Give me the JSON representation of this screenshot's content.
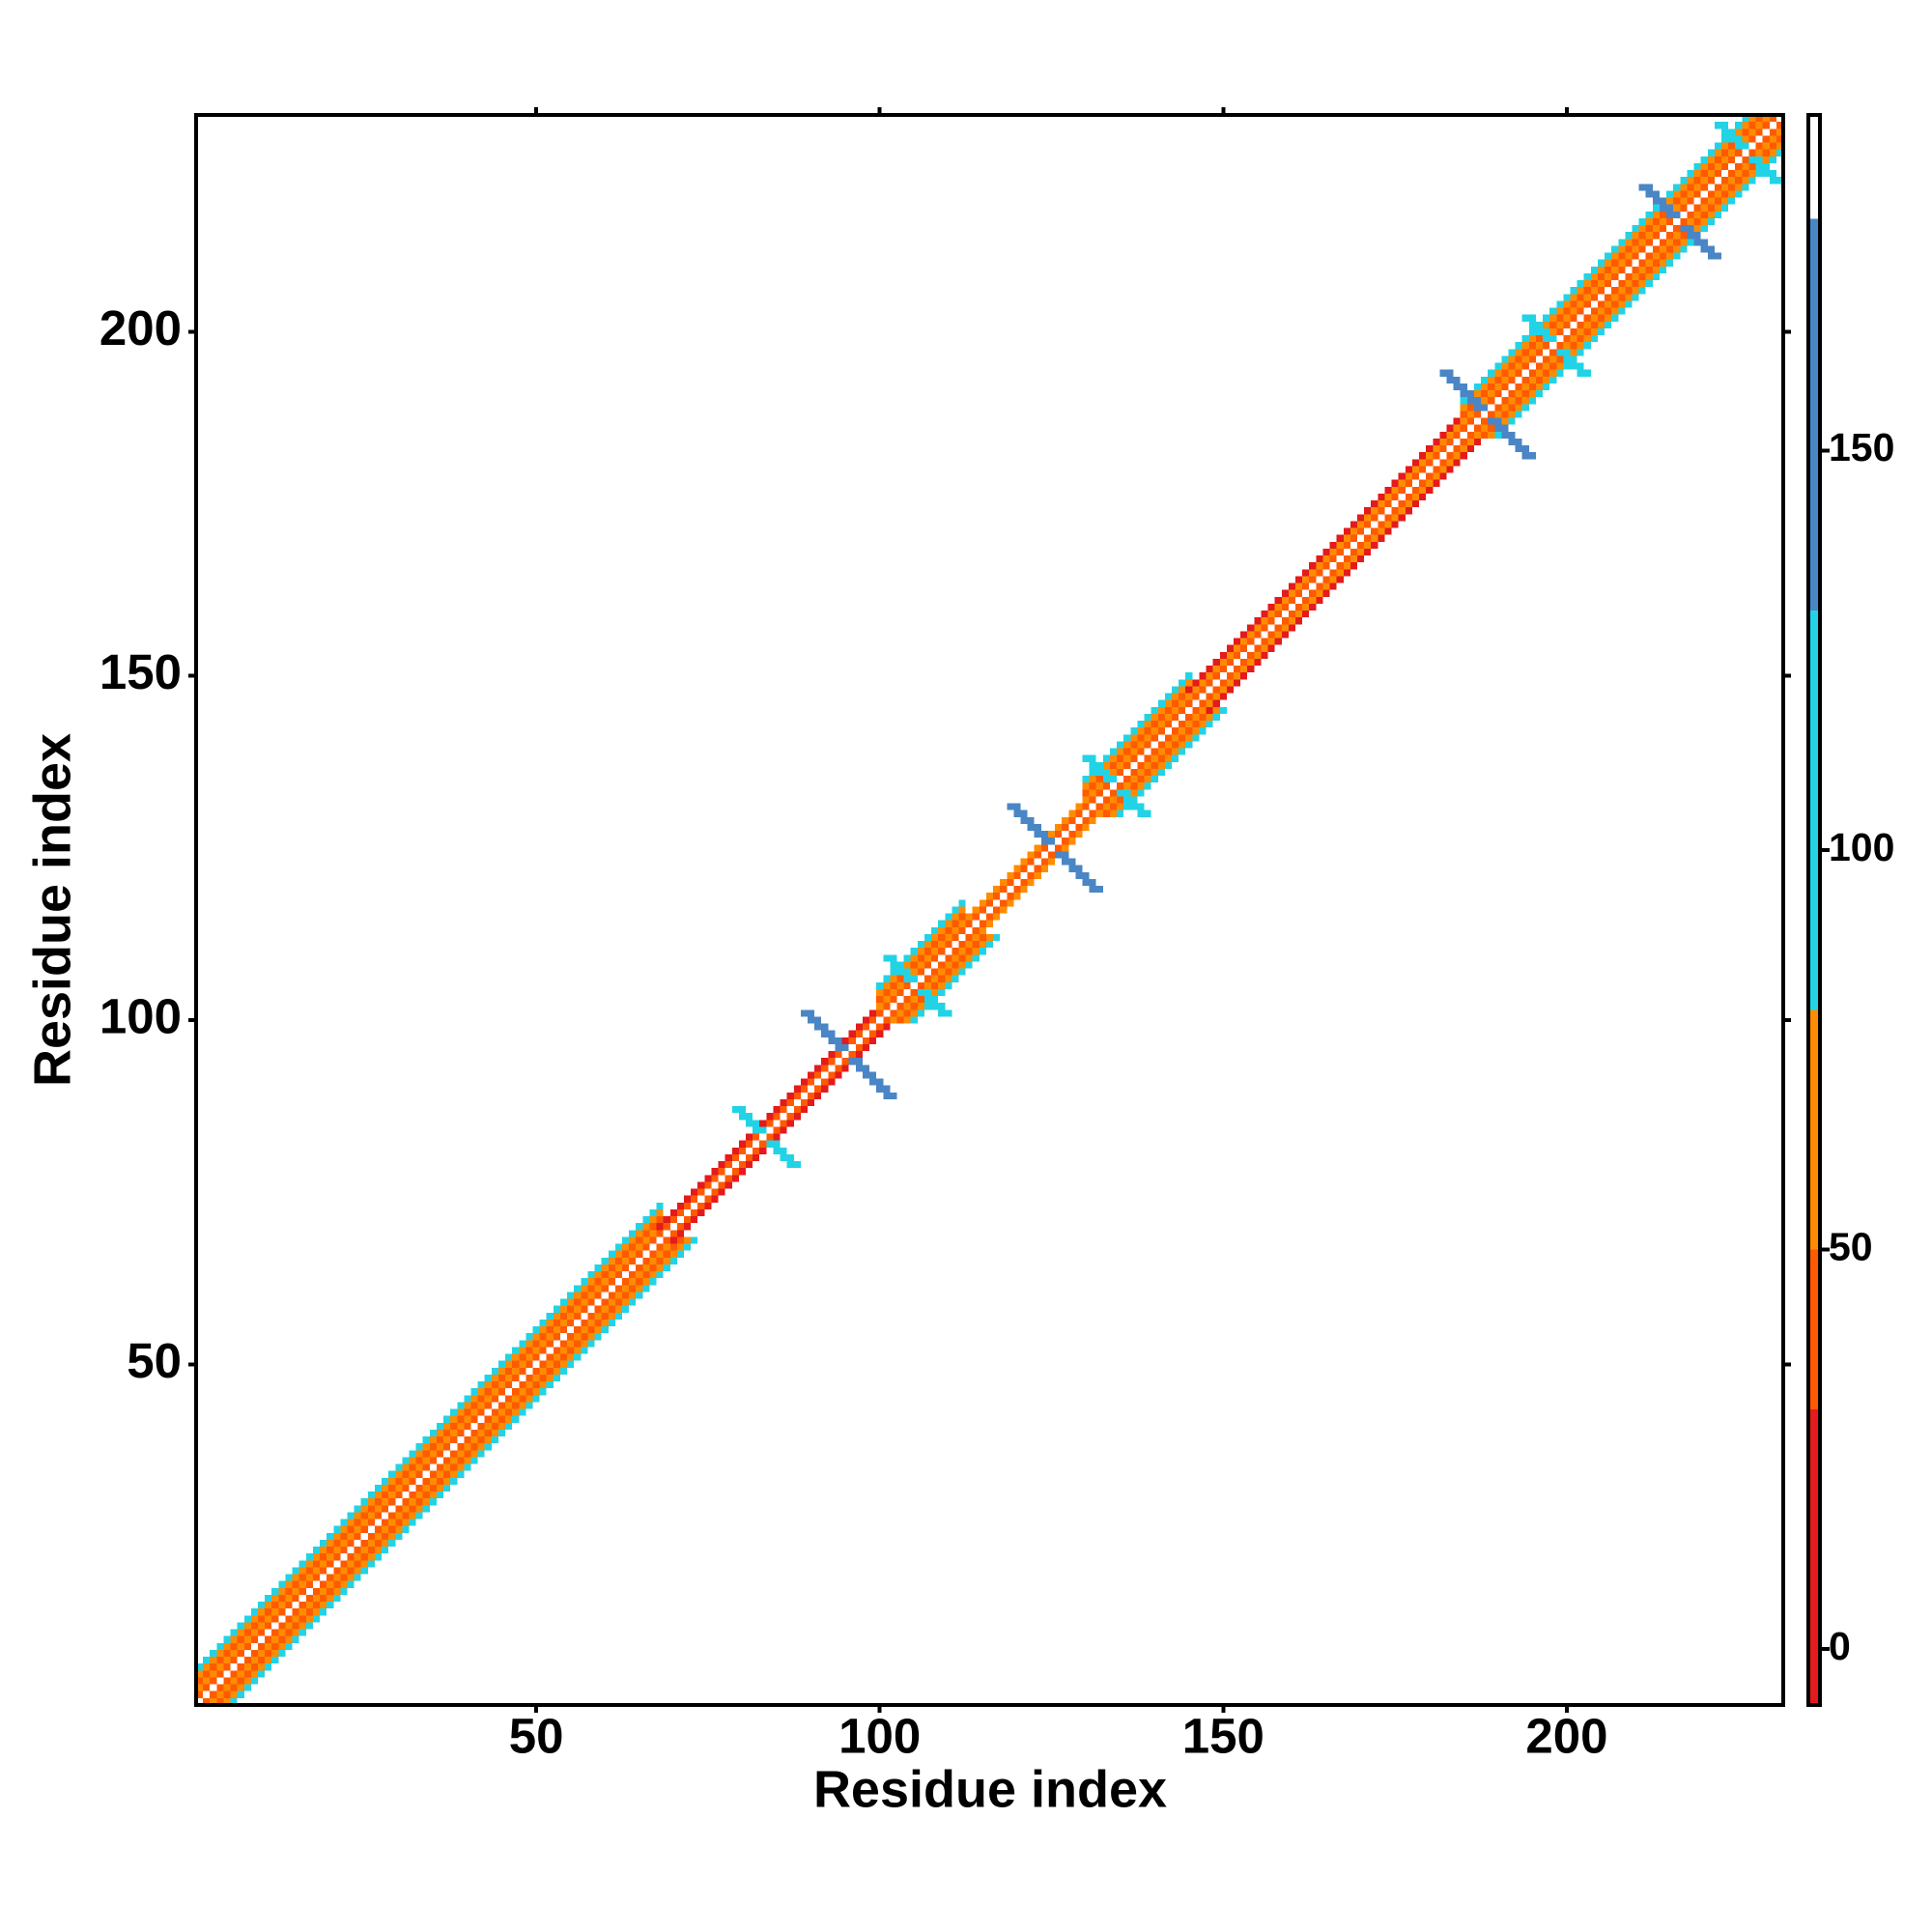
{
  "chart_data": {
    "type": "heatmap",
    "xlabel": "Residue index",
    "ylabel": "Residue index",
    "xlim": [
      0.5,
      231.5
    ],
    "ylim": [
      0.5,
      231.5
    ],
    "xticks": [
      50,
      100,
      150,
      200
    ],
    "yticks": [
      50,
      100,
      150,
      200
    ],
    "colorbar": {
      "lim": [
        -7,
        192
      ],
      "ticks": [
        0,
        50,
        100,
        150
      ],
      "bins": [
        -7,
        30,
        50,
        80,
        130,
        179,
        192
      ],
      "colors": [
        "#e41a1c",
        "#ff5a00",
        "#ff8c00",
        "#22d3e6",
        "#4a86c5",
        "#ffffff"
      ]
    },
    "regions": [
      {
        "start": 1,
        "end": 68,
        "values": [
          38,
          55,
          45,
          62,
          95
        ]
      },
      {
        "start": 68,
        "end": 100,
        "values": [
          38,
          25
        ]
      },
      {
        "start": 100,
        "end": 112,
        "values": [
          38,
          55,
          45,
          62,
          95
        ]
      },
      {
        "start": 112,
        "end": 130,
        "values": [
          38,
          60
        ]
      },
      {
        "start": 130,
        "end": 145,
        "values": [
          38,
          55,
          45,
          62,
          95
        ]
      },
      {
        "start": 145,
        "end": 185,
        "values": [
          38,
          55,
          25
        ]
      },
      {
        "start": 185,
        "end": 231,
        "values": [
          38,
          55,
          45,
          62,
          95
        ]
      }
    ],
    "crosses": [
      {
        "center": 83,
        "half": 4,
        "value": 110
      },
      {
        "center": 95,
        "half": 6,
        "value": 140
      },
      {
        "center": 105,
        "half": 4,
        "value": 110
      },
      {
        "center": 125,
        "half": 6,
        "value": 150
      },
      {
        "center": 134,
        "half": 4,
        "value": 110
      },
      {
        "center": 188,
        "half": 6,
        "value": 150
      },
      {
        "center": 198,
        "half": 4,
        "value": 110
      },
      {
        "center": 216,
        "half": 5,
        "value": 150
      },
      {
        "center": 226,
        "half": 4,
        "value": 110
      }
    ]
  }
}
